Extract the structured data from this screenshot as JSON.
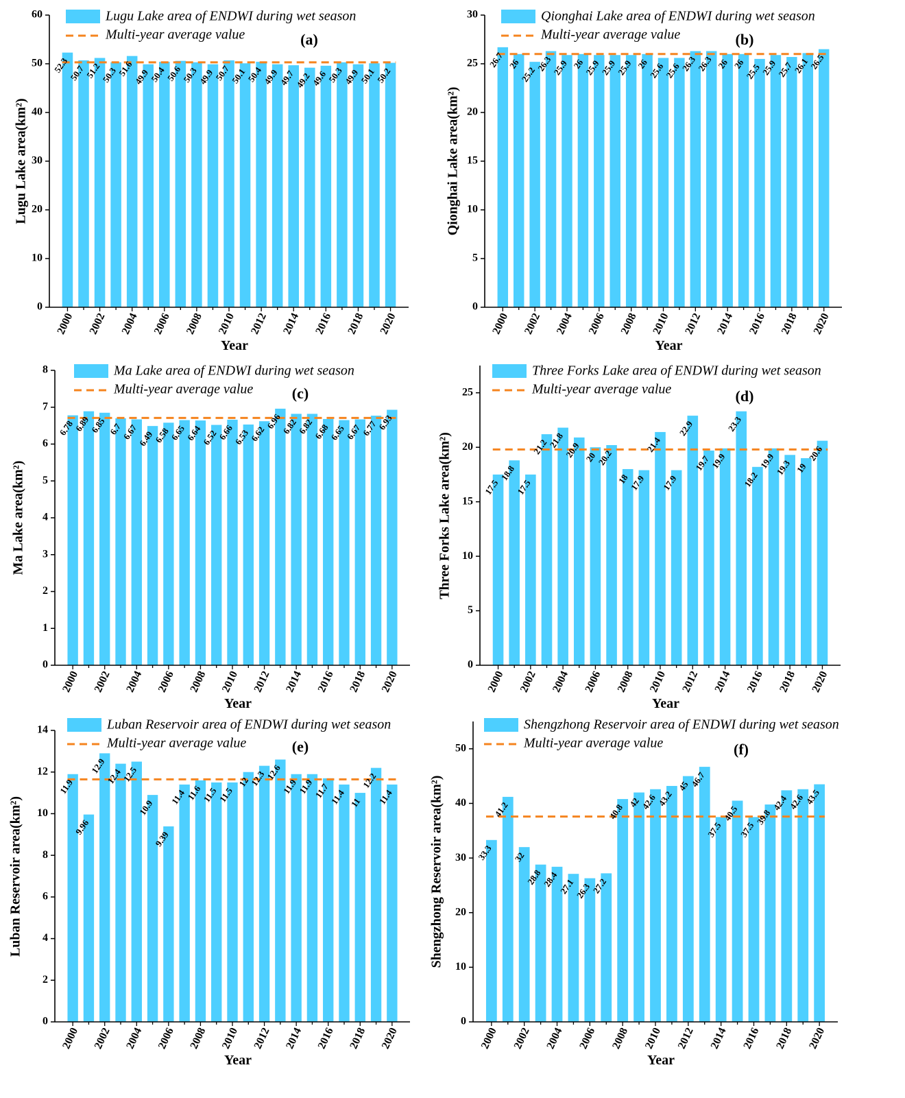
{
  "colors": {
    "bar": "#4dcfff",
    "average_line": "#f5841f",
    "axis": "#000000"
  },
  "chart_data": [
    {
      "panel": "(a)",
      "type": "bar",
      "title": "",
      "xlabel": "Year",
      "ylabel": "Lugu Lake area(km²)",
      "legend": {
        "bars": "Lugu Lake area of ENDWI during wet season",
        "line": "Multi-year average value"
      },
      "categories": [
        2000,
        2001,
        2002,
        2003,
        2004,
        2005,
        2006,
        2007,
        2008,
        2009,
        2010,
        2011,
        2012,
        2013,
        2014,
        2015,
        2016,
        2017,
        2018,
        2019,
        2020
      ],
      "values": [
        52.3,
        50.7,
        51.2,
        50.3,
        51.6,
        49.9,
        50.4,
        50.6,
        50.3,
        49.9,
        50.7,
        50.1,
        50.4,
        49.9,
        49.7,
        49.2,
        49.6,
        50.3,
        49.9,
        50.1,
        50.2
      ],
      "value_labels": [
        "52.3",
        "50.7",
        "51.2",
        "50.3",
        "51.6",
        "49.9",
        "50.4",
        "50.6",
        "50.3",
        "49.9",
        "50.7",
        "50.1",
        "50.4",
        "49.9",
        "49.7",
        "49.2",
        "49.6",
        "50.3",
        "49.9",
        "50.1",
        "50.2"
      ],
      "average": 50.3,
      "ylim": [
        0,
        60
      ],
      "yticks": [
        0,
        10,
        20,
        30,
        40,
        50,
        60
      ],
      "xticks": [
        2000,
        2002,
        2004,
        2006,
        2008,
        2010,
        2012,
        2014,
        2016,
        2018,
        2020
      ]
    },
    {
      "panel": "(b)",
      "type": "bar",
      "title": "",
      "xlabel": "Year",
      "ylabel": "Qionghai Lake area(km²)",
      "legend": {
        "bars": "Qionghai Lake area of ENDWI during wet season",
        "line": "Multi-year average value"
      },
      "categories": [
        2000,
        2001,
        2002,
        2003,
        2004,
        2005,
        2006,
        2007,
        2008,
        2009,
        2010,
        2011,
        2012,
        2013,
        2014,
        2015,
        2016,
        2017,
        2018,
        2019,
        2020
      ],
      "values": [
        26.7,
        26,
        25.2,
        26.3,
        25.9,
        26,
        25.9,
        25.9,
        25.9,
        26,
        25.6,
        25.6,
        26.3,
        26.3,
        26,
        26,
        25.5,
        25.9,
        25.7,
        26.1,
        26.5
      ],
      "value_labels": [
        "26.7",
        "26",
        "25.2",
        "26.3",
        "25.9",
        "26",
        "25.9",
        "25.9",
        "25.9",
        "26",
        "25.6",
        "25.6",
        "26.3",
        "26.3",
        "26",
        "26",
        "25.5",
        "25.9",
        "25.7",
        "26.1",
        "26.5"
      ],
      "average": 26,
      "ylim": [
        0,
        30
      ],
      "yticks": [
        0,
        5,
        10,
        15,
        20,
        25,
        30
      ],
      "xticks": [
        2000,
        2002,
        2004,
        2006,
        2008,
        2010,
        2012,
        2014,
        2016,
        2018,
        2020
      ]
    },
    {
      "panel": "(c)",
      "type": "bar",
      "title": "",
      "xlabel": "Year",
      "ylabel": "Ma Lake area(km²)",
      "legend": {
        "bars": "Ma Lake area of ENDWI during wet season",
        "line": "Multi-year average value"
      },
      "categories": [
        2000,
        2001,
        2002,
        2003,
        2004,
        2005,
        2006,
        2007,
        2008,
        2009,
        2010,
        2011,
        2012,
        2013,
        2014,
        2015,
        2016,
        2017,
        2018,
        2019,
        2020
      ],
      "values": [
        6.78,
        6.89,
        6.85,
        6.7,
        6.67,
        6.49,
        6.58,
        6.65,
        6.64,
        6.52,
        6.66,
        6.53,
        6.62,
        6.96,
        6.82,
        6.82,
        6.68,
        6.65,
        6.67,
        6.77,
        6.93
      ],
      "value_labels": [
        "6.78",
        "6.89",
        "6.85",
        "6.7",
        "6.67",
        "6.49",
        "6.58",
        "6.65",
        "6.64",
        "6.52",
        "6.66",
        "6.53",
        "6.62",
        "6.96",
        "6.82",
        "6.82",
        "6.68",
        "6.65",
        "6.67",
        "6.77",
        "6.93"
      ],
      "average": 6.71,
      "ylim": [
        0,
        8
      ],
      "yticks": [
        0,
        1,
        2,
        3,
        4,
        5,
        6,
        7,
        8
      ],
      "xticks": [
        2000,
        2002,
        2004,
        2006,
        2008,
        2010,
        2012,
        2014,
        2016,
        2018,
        2020
      ]
    },
    {
      "panel": "(d)",
      "type": "bar",
      "title": "",
      "xlabel": "Year",
      "ylabel": "Three Forks Lake area(km²)",
      "legend": {
        "bars": "Three Forks Lake area of ENDWI during wet season",
        "line": "Multi-year average value"
      },
      "categories": [
        2000,
        2001,
        2002,
        2003,
        2004,
        2005,
        2006,
        2007,
        2008,
        2009,
        2010,
        2011,
        2012,
        2013,
        2014,
        2015,
        2016,
        2017,
        2018,
        2019,
        2020
      ],
      "values": [
        17.5,
        18.8,
        17.5,
        21.2,
        21.8,
        20.9,
        20,
        20.2,
        18,
        17.9,
        21.4,
        17.9,
        22.9,
        19.7,
        19.9,
        23.3,
        18.2,
        19.9,
        19.3,
        19,
        20.6
      ],
      "value_labels": [
        "17.5",
        "18.8",
        "17.5",
        "21.2",
        "21.8",
        "20.9",
        "20",
        "20.2",
        "18",
        "17.9",
        "21.4",
        "17.9",
        "22.9",
        "19.7",
        "19.9",
        "23.3",
        "18.2",
        "19.9",
        "19.3",
        "19",
        "20.6"
      ],
      "average": 19.8,
      "ylim": [
        0,
        27.5
      ],
      "yticks": [
        0,
        5,
        10,
        15,
        20,
        25
      ],
      "xticks": [
        2000,
        2002,
        2004,
        2006,
        2008,
        2010,
        2012,
        2014,
        2016,
        2018,
        2020
      ]
    },
    {
      "panel": "(e)",
      "type": "bar",
      "title": "",
      "xlabel": "Year",
      "ylabel": "Luban Reservoir area(km²)",
      "legend": {
        "bars": "Luban Reservoir area of ENDWI during wet season",
        "line": "Multi-year average value"
      },
      "categories": [
        2000,
        2001,
        2002,
        2003,
        2004,
        2005,
        2006,
        2007,
        2008,
        2009,
        2010,
        2011,
        2012,
        2013,
        2014,
        2015,
        2016,
        2017,
        2018,
        2019,
        2020
      ],
      "values": [
        11.9,
        9.96,
        12.9,
        12.4,
        12.5,
        10.9,
        9.39,
        11.4,
        11.6,
        11.5,
        11.5,
        12,
        12.3,
        12.6,
        11.9,
        11.9,
        11.7,
        11.4,
        11,
        12.2,
        11.4
      ],
      "value_labels": [
        "11.9",
        "9.96",
        "12.9",
        "12.4",
        "12.5",
        "10.9",
        "9.39",
        "11.4",
        "11.6",
        "11.5",
        "11.5",
        "12",
        "12.3",
        "12.6",
        "11.9",
        "11.9",
        "11.7",
        "11.4",
        "11",
        "12.2",
        "11.4"
      ],
      "average": 11.65,
      "ylim": [
        0,
        14
      ],
      "yticks": [
        0,
        2,
        4,
        6,
        8,
        10,
        12,
        14
      ],
      "xticks": [
        2000,
        2002,
        2004,
        2006,
        2008,
        2010,
        2012,
        2014,
        2016,
        2018,
        2020
      ]
    },
    {
      "panel": "(f)",
      "type": "bar",
      "title": "",
      "xlabel": "Year",
      "ylabel": "Shengzhong Reservoir area(km²)",
      "legend": {
        "bars": "Shengzhong Reservoir area of ENDWI during wet season",
        "line": "Multi-year average value"
      },
      "categories": [
        2000,
        2001,
        2002,
        2003,
        2004,
        2005,
        2006,
        2007,
        2008,
        2009,
        2010,
        2011,
        2012,
        2013,
        2014,
        2015,
        2016,
        2017,
        2018,
        2019,
        2020
      ],
      "values": [
        33.3,
        41.2,
        32,
        28.8,
        28.4,
        27.1,
        26.3,
        27.2,
        40.8,
        42,
        42.6,
        43.2,
        45,
        46.7,
        37.5,
        40.5,
        37.5,
        39.8,
        42.4,
        42.6,
        43.5
      ],
      "value_labels": [
        "33.3",
        "41.2",
        "32",
        "28.8",
        "28.4",
        "27.1",
        "26.3",
        "27.2",
        "40.8",
        "42",
        "42.6",
        "43.2",
        "45",
        "46.7",
        "37.5",
        "40.5",
        "37.5",
        "39.8",
        "42.4",
        "42.6",
        "43.5"
      ],
      "average": 37.6,
      "ylim": [
        0,
        55
      ],
      "yticks": [
        0,
        10,
        20,
        30,
        40,
        50
      ],
      "xticks": [
        2000,
        2002,
        2004,
        2006,
        2008,
        2010,
        2012,
        2014,
        2016,
        2018,
        2020
      ]
    }
  ]
}
